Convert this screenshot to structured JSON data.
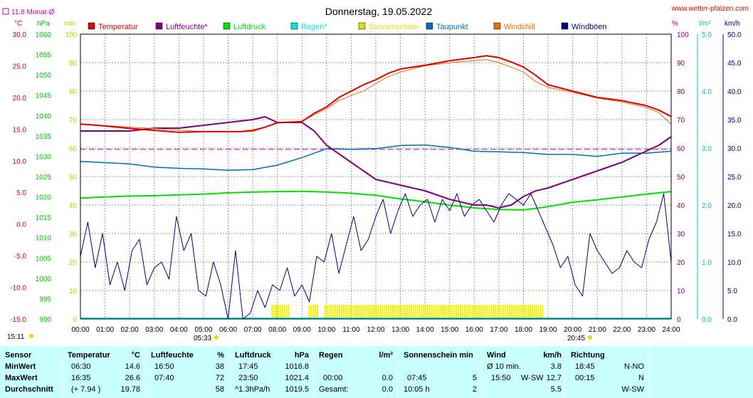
{
  "header": {
    "title": "Donnerstag, 19.05.2022",
    "site": "www.wetter-pfalzen.com",
    "monthly_avg": "11.8 Monat-Ø"
  },
  "legend": [
    {
      "label": "Temperatur",
      "color": "#e00000"
    },
    {
      "label": "Luftfeuchte*",
      "color": "#800080"
    },
    {
      "label": "Luftdruck",
      "color": "#00e000"
    },
    {
      "label": "Regen*",
      "color": "#00e0e0"
    },
    {
      "label": "Sonnenschein",
      "color": "#e0e000"
    },
    {
      "label": "Taupunkt",
      "color": "#0070b0"
    },
    {
      "label": "Windchill",
      "color": "#e07000"
    },
    {
      "label": "Windböen",
      "color": "#000080"
    }
  ],
  "axes": {
    "temp_unit": "°C",
    "pressure_unit": "hPa",
    "sun_unit": "min",
    "hum_unit": "%",
    "rain_unit": "l/m²",
    "wind_unit": "km/h",
    "temp_ticks": [
      "30.0",
      "25.0",
      "20.0",
      "15.0",
      "10.0",
      "5.0",
      "0.0",
      "-5.0",
      "-10.0",
      "-15.0"
    ],
    "pressure_ticks": [
      "1060",
      "1055",
      "1050",
      "1045",
      "1040",
      "1035",
      "1030",
      "1025",
      "1020",
      "1015",
      "1010",
      "1005",
      "1000",
      "995",
      "990"
    ],
    "sun_ticks": [
      "100",
      "90",
      "80",
      "70",
      "60",
      "50",
      "40",
      "30",
      "20",
      "10",
      "0"
    ],
    "hum_ticks": [
      "100",
      "90",
      "80",
      "70",
      "60",
      "50",
      "40",
      "30",
      "20",
      "10",
      "0"
    ],
    "rain_ticks": [
      "5.0",
      "4.0",
      "3.0",
      "2.0",
      "1.0",
      "0.0"
    ],
    "wind_ticks": [
      "50.0",
      "45.0",
      "40.0",
      "35.0",
      "30.0",
      "25.0",
      "20.0",
      "15.0",
      "10.0",
      "5.0",
      "0.0"
    ],
    "x_ticks": [
      "00:00",
      "01:00",
      "02:00",
      "03:00",
      "04:00",
      "05:00",
      "06:00",
      "07:00",
      "08:00",
      "09:00",
      "10:00",
      "11:00",
      "12:00",
      "13:00",
      "14:00",
      "15:00",
      "16:00",
      "17:00",
      "18:00",
      "19:00",
      "20:00",
      "21:00",
      "22:00",
      "23:00",
      "24:00"
    ],
    "sunrise": "05:33",
    "sunset": "20:45",
    "moonrise": "15:11"
  },
  "chart_data": {
    "type": "line",
    "title": "Donnerstag, 19.05.2022",
    "x_unit": "hours",
    "ylim_temp": [
      -15,
      30
    ],
    "ylim_pressure": [
      990,
      1060
    ],
    "ylim_humidity": [
      0,
      100
    ],
    "ylim_wind": [
      0,
      50
    ],
    "ylim_rain": [
      0,
      5
    ],
    "monthly_avg_temp": 11.8,
    "series": [
      {
        "name": "Temperatur",
        "axis": "temp",
        "x": [
          0,
          1,
          2,
          3,
          4,
          5,
          6,
          6.5,
          7,
          7.5,
          8,
          9,
          9.5,
          10,
          10.5,
          11,
          11.5,
          12,
          12.5,
          13,
          14,
          15,
          16,
          16.5,
          17,
          17.5,
          18,
          18.5,
          19,
          20,
          21,
          22,
          23,
          23.5,
          24
        ],
        "y": [
          15.8,
          15.5,
          15.1,
          14.8,
          14.5,
          14.6,
          14.6,
          14.6,
          14.8,
          15.3,
          16.0,
          16.2,
          17.5,
          18.5,
          20.0,
          21.0,
          22.0,
          22.8,
          23.8,
          24.5,
          25.1,
          25.8,
          26.3,
          26.6,
          26.3,
          25.6,
          24.8,
          23.5,
          22.0,
          21.0,
          20.0,
          19.5,
          18.7,
          18.0,
          17.0
        ]
      },
      {
        "name": "Windchill",
        "axis": "temp",
        "x": [
          0,
          5,
          7,
          8,
          9,
          9.5,
          10,
          10.5,
          11,
          11.5,
          12,
          12.5,
          13,
          14,
          15,
          16,
          16.5,
          17,
          17.5,
          18,
          18.5,
          19,
          20,
          21,
          22,
          23,
          23.5,
          24
        ],
        "y": [
          15.8,
          14.6,
          14.6,
          16.0,
          16.2,
          17.3,
          18.2,
          19.5,
          20.3,
          21.0,
          22.2,
          23.3,
          24.0,
          25.0,
          25.5,
          25.8,
          26.0,
          25.5,
          24.8,
          24.0,
          22.5,
          21.6,
          20.8,
          19.9,
          19.3,
          18.4,
          17.6,
          15.8
        ]
      },
      {
        "name": "Taupunkt",
        "axis": "temp",
        "x": [
          0,
          1,
          2,
          3,
          4,
          5,
          6,
          7,
          8,
          9,
          10,
          11,
          12,
          13,
          14,
          15,
          16,
          17,
          18,
          19,
          20,
          21,
          22,
          23,
          24
        ],
        "y": [
          9.9,
          9.7,
          9.5,
          9.0,
          8.8,
          8.7,
          8.5,
          8.6,
          9.3,
          10.5,
          11.9,
          11.8,
          11.9,
          12.4,
          12.5,
          12.1,
          11.5,
          11.4,
          11.3,
          11.0,
          11.0,
          10.7,
          11.2,
          11.2,
          11.5
        ]
      },
      {
        "name": "Luftfeuchte*",
        "axis": "humidity",
        "x": [
          0,
          1,
          2,
          3,
          4,
          5,
          6,
          7,
          7.5,
          8,
          9,
          9.5,
          10,
          10.5,
          11,
          11.5,
          12,
          13,
          14,
          15,
          16,
          16.5,
          17,
          17.5,
          18,
          18.5,
          19,
          20,
          21,
          22,
          23,
          23.5,
          24
        ],
        "y": [
          66,
          66,
          66,
          67,
          67,
          68,
          69,
          70,
          71,
          69,
          69,
          66,
          61,
          58,
          55,
          52,
          49,
          47,
          45,
          42,
          40,
          40,
          39,
          40,
          43,
          45,
          46,
          49,
          52,
          55,
          59,
          61,
          64
        ]
      },
      {
        "name": "Luftdruck",
        "axis": "pressure",
        "x": [
          0,
          1,
          2,
          3,
          4,
          5,
          6,
          7,
          8,
          9,
          10,
          11,
          12,
          13,
          14,
          15,
          16,
          17,
          18,
          19,
          20,
          21,
          22,
          23,
          24
        ],
        "y": [
          1019.7,
          1020.0,
          1020.2,
          1020.3,
          1020.5,
          1020.7,
          1021.0,
          1021.2,
          1021.3,
          1021.4,
          1021.2,
          1020.9,
          1020.4,
          1019.5,
          1018.8,
          1018.0,
          1017.3,
          1016.9,
          1016.8,
          1017.6,
          1018.7,
          1019.3,
          1020.0,
          1020.7,
          1021.3
        ]
      },
      {
        "name": "Windböen",
        "axis": "wind",
        "x": [
          0,
          0.3,
          0.6,
          0.9,
          1.2,
          1.5,
          1.8,
          2.1,
          2.4,
          2.7,
          3.0,
          3.3,
          3.6,
          3.9,
          4.2,
          4.5,
          4.8,
          5.1,
          5.4,
          5.7,
          6.0,
          6.3,
          6.6,
          6.9,
          7.2,
          7.5,
          7.8,
          8.1,
          8.4,
          8.7,
          9.0,
          9.3,
          9.6,
          9.9,
          10.2,
          10.5,
          10.8,
          11.1,
          11.4,
          11.7,
          12.0,
          12.3,
          12.6,
          12.9,
          13.2,
          13.5,
          13.8,
          14.1,
          14.4,
          14.7,
          15.0,
          15.3,
          15.6,
          15.9,
          16.2,
          16.5,
          16.8,
          17.1,
          17.4,
          17.7,
          18.0,
          18.3,
          18.6,
          18.9,
          19.2,
          19.5,
          19.8,
          20.1,
          20.4,
          20.7,
          21.0,
          21.3,
          21.6,
          21.9,
          22.2,
          22.5,
          22.8,
          23.1,
          23.4,
          23.7,
          24.0
        ],
        "y": [
          11,
          17,
          9,
          15,
          6,
          10,
          5,
          12,
          14,
          6,
          9,
          10,
          7,
          18,
          12,
          15,
          5,
          4,
          10,
          6,
          0,
          12,
          0,
          1,
          5,
          2,
          6,
          5,
          9,
          4,
          6,
          3,
          11,
          10,
          15,
          8,
          13,
          18,
          12,
          14,
          18,
          21,
          15,
          19,
          22,
          18,
          20,
          21,
          17,
          21,
          19,
          22,
          18,
          20,
          21,
          19,
          17,
          20,
          22,
          21,
          20,
          22,
          19,
          16,
          13,
          9,
          11,
          6,
          4,
          15,
          12,
          10,
          8,
          9,
          12,
          10,
          9,
          14,
          17,
          22,
          10
        ]
      }
    ],
    "sunshine": {
      "name": "Sonnenschein",
      "axis": "sun",
      "intervals": [
        [
          7.75,
          8.5
        ],
        [
          9.25,
          9.6
        ],
        [
          9.9,
          18.75
        ]
      ],
      "value": 5
    },
    "rain": {
      "name": "Regen*",
      "axis": "rain",
      "total": 0.0
    }
  },
  "summary": {
    "headers": {
      "sensor": "Sensor",
      "temp": "Temperatur",
      "temp_unit": "°C",
      "hum": "Luftfeuchte",
      "hum_unit": "%",
      "press": "Luftdruck",
      "press_unit": "hPa",
      "rain": "Regen",
      "rain_unit": "l/m²",
      "sun": "Sonnenschein min",
      "wind": "Wind",
      "wind_unit": "km/h",
      "dir": "Richtung"
    },
    "rows": [
      {
        "label": "MinWert",
        "temp_time": "06:30",
        "temp_val": "14.6",
        "hum_time": "16:50",
        "hum_val": "38",
        "press_time": "17:45",
        "press_val": "1016.8",
        "rain_time": "",
        "rain_val": "",
        "sun_time": "",
        "sun_val": "",
        "wind_time": "Ø 10 min.",
        "wind_dir": "",
        "wind_val": "3.8",
        "dir_time": "18:45",
        "dir_val": "N-NO"
      },
      {
        "label": "MaxWert",
        "temp_time": "16:35",
        "temp_val": "26.6",
        "hum_time": "07:40",
        "hum_val": "72",
        "press_time": "23:50",
        "press_val": "1021.4",
        "rain_time": "00:00",
        "rain_val": "0.0",
        "sun_time": "07:45",
        "sun_val": "5",
        "wind_time": "15:50",
        "wind_dir": "W-SW",
        "wind_val": "12.7",
        "dir_time": "00:15",
        "dir_val": "N"
      },
      {
        "label": "Durchschnitt",
        "temp_time": "(+ 7.94 )",
        "temp_val": "19.78",
        "hum_time": "",
        "hum_val": "58",
        "press_time": "^1.3hPa/h",
        "press_val": "1019.5",
        "rain_time": "Gesamt:",
        "rain_val": "0.0",
        "sun_time": "10:05 h",
        "sun_val": "2",
        "wind_time": "",
        "wind_dir": "",
        "wind_val": "5.5",
        "dir_time": "",
        "dir_val": "W-SW"
      }
    ]
  }
}
